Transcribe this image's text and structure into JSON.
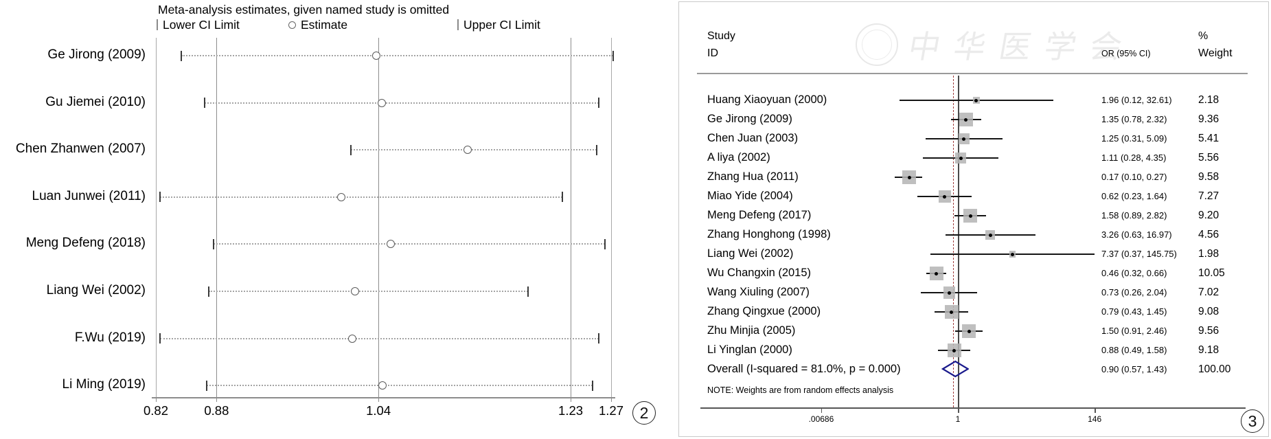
{
  "left_panel": {
    "figure_label": "2"
  },
  "right_panel": {
    "figure_label": "3",
    "watermark_text": "中华医学会",
    "header": {
      "study": "Study",
      "id": "ID",
      "or": "OR (95% CI)",
      "percent": "%",
      "weight": "Weight"
    }
  },
  "chart_data": [
    {
      "type": "scatter",
      "title": "Meta-analysis estimates, given named study is omitted",
      "legend_entries": [
        "Lower CI Limit",
        "Estimate",
        "Upper CI Limit"
      ],
      "xlim": [
        0.82,
        1.27
      ],
      "x_ticks": [
        0.82,
        0.88,
        1.04,
        1.23,
        1.27
      ],
      "x_tick_labels": [
        "0.82",
        "0.88",
        "1.04",
        "1.23",
        "1.27"
      ],
      "reference_lines": [
        0.88,
        1.04,
        1.23
      ],
      "grid": false,
      "legend_position": "top",
      "categories": [
        "Ge Jirong (2009)",
        "Gu Jiemei (2010)",
        "Chen Zhanwen (2007)",
        "Luan Junwei (2011)",
        "Meng Defeng (2018)",
        "Liang Wei (2002)",
        "F.Wu (2019)",
        "Li Ming (2019)"
      ],
      "series": [
        {
          "name": "Lower CI Limit",
          "values": [
            0.845,
            0.868,
            1.013,
            0.824,
            0.877,
            0.872,
            0.824,
            0.87
          ]
        },
        {
          "name": "Estimate",
          "values": [
            1.038,
            1.043,
            1.128,
            1.003,
            1.052,
            1.017,
            1.014,
            1.044
          ]
        },
        {
          "name": "Upper CI Limit",
          "values": [
            1.272,
            1.258,
            1.256,
            1.222,
            1.264,
            1.188,
            1.258,
            1.252
          ]
        }
      ]
    },
    {
      "type": "forest",
      "x_scale": "log",
      "x_ticks": [
        0.00686,
        1,
        146
      ],
      "x_tick_labels": [
        ".00686",
        "1",
        "146"
      ],
      "null_line": 1,
      "overall_estimate_line": 0.9,
      "note": "NOTE: Weights are from random effects analysis",
      "rows": [
        {
          "label": "Huang Xiaoyuan (2000)",
          "or": 1.96,
          "ci_low": 0.12,
          "ci_high": 32.61,
          "or_text": "1.96 (0.12, 32.61)",
          "weight": 2.18,
          "weight_text": "2.18"
        },
        {
          "label": "Ge Jirong (2009)",
          "or": 1.35,
          "ci_low": 0.78,
          "ci_high": 2.32,
          "or_text": "1.35 (0.78, 2.32)",
          "weight": 9.36,
          "weight_text": "9.36"
        },
        {
          "label": "Chen Juan (2003)",
          "or": 1.25,
          "ci_low": 0.31,
          "ci_high": 5.09,
          "or_text": "1.25 (0.31, 5.09)",
          "weight": 5.41,
          "weight_text": "5.41"
        },
        {
          "label": "A liya (2002)",
          "or": 1.11,
          "ci_low": 0.28,
          "ci_high": 4.35,
          "or_text": "1.11 (0.28, 4.35)",
          "weight": 5.56,
          "weight_text": "5.56"
        },
        {
          "label": "Zhang Hua (2011)",
          "or": 0.17,
          "ci_low": 0.1,
          "ci_high": 0.27,
          "or_text": "0.17 (0.10, 0.27)",
          "weight": 9.58,
          "weight_text": "9.58"
        },
        {
          "label": "Miao Yide (2004)",
          "or": 0.62,
          "ci_low": 0.23,
          "ci_high": 1.64,
          "or_text": "0.62 (0.23, 1.64)",
          "weight": 7.27,
          "weight_text": "7.27"
        },
        {
          "label": "Meng Defeng (2017)",
          "or": 1.58,
          "ci_low": 0.89,
          "ci_high": 2.82,
          "or_text": "1.58 (0.89, 2.82)",
          "weight": 9.2,
          "weight_text": "9.20"
        },
        {
          "label": "Zhang Honghong  (1998)",
          "or": 3.26,
          "ci_low": 0.63,
          "ci_high": 16.97,
          "or_text": "3.26 (0.63, 16.97)",
          "weight": 4.56,
          "weight_text": "4.56"
        },
        {
          "label": "Liang Wei (2002)",
          "or": 7.37,
          "ci_low": 0.37,
          "ci_high": 145.75,
          "or_text": "7.37 (0.37, 145.75)",
          "weight": 1.98,
          "weight_text": "1.98"
        },
        {
          "label": "Wu Changxin (2015)",
          "or": 0.46,
          "ci_low": 0.32,
          "ci_high": 0.66,
          "or_text": "0.46 (0.32, 0.66)",
          "weight": 10.05,
          "weight_text": "10.05"
        },
        {
          "label": "Wang Xiuling (2007)",
          "or": 0.73,
          "ci_low": 0.26,
          "ci_high": 2.04,
          "or_text": "0.73 (0.26, 2.04)",
          "weight": 7.02,
          "weight_text": "7.02"
        },
        {
          "label": "Zhang Qingxue (2000)",
          "or": 0.79,
          "ci_low": 0.43,
          "ci_high": 1.45,
          "or_text": "0.79 (0.43, 1.45)",
          "weight": 9.08,
          "weight_text": "9.08"
        },
        {
          "label": "Zhu Minjia (2005)",
          "or": 1.5,
          "ci_low": 0.91,
          "ci_high": 2.46,
          "or_text": "1.50 (0.91, 2.46)",
          "weight": 9.56,
          "weight_text": "9.56"
        },
        {
          "label": "Li Yinglan (2000)",
          "or": 0.88,
          "ci_low": 0.49,
          "ci_high": 1.58,
          "or_text": "0.88 (0.49, 1.58)",
          "weight": 9.18,
          "weight_text": "9.18"
        }
      ],
      "overall": {
        "label": "Overall  (I-squared = 81.0%, p = 0.000)",
        "or": 0.9,
        "ci_low": 0.57,
        "ci_high": 1.43,
        "or_text": "0.90 (0.57, 1.43)",
        "weight": 100.0,
        "weight_text": "100.00"
      }
    }
  ]
}
